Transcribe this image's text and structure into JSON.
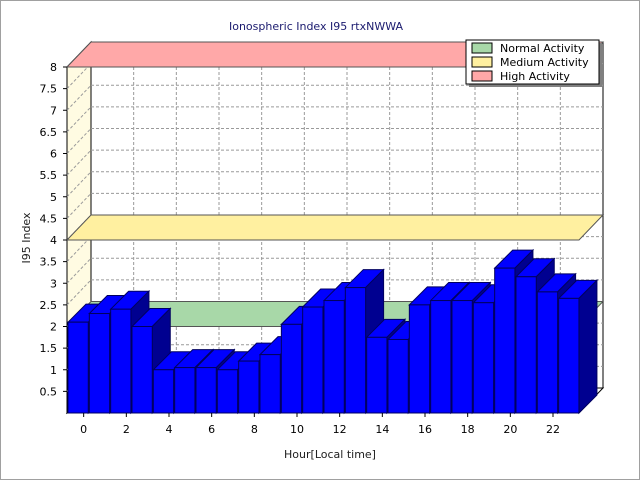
{
  "chart_data": {
    "type": "bar",
    "title": "Ionospheric Index I95 rtxNWWA",
    "xlabel": "Hour[Local time]",
    "ylabel": "I95 Index",
    "ylim": [
      0,
      8
    ],
    "ytick_step": 0.5,
    "x": [
      0,
      1,
      2,
      3,
      4,
      5,
      6,
      7,
      8,
      9,
      10,
      11,
      12,
      13,
      14,
      15,
      16,
      17,
      18,
      19,
      20,
      21,
      22,
      23
    ],
    "xtick_labels": [
      "0",
      "2",
      "4",
      "6",
      "8",
      "10",
      "12",
      "14",
      "16",
      "18",
      "20",
      "22"
    ],
    "values": [
      2.1,
      2.3,
      2.4,
      2.0,
      1.0,
      1.05,
      1.05,
      1.0,
      1.2,
      1.35,
      2.05,
      2.45,
      2.6,
      2.9,
      1.75,
      1.7,
      2.5,
      2.6,
      2.6,
      2.55,
      3.35,
      3.15,
      2.8,
      2.65
    ],
    "bar_color": "#0000ff",
    "grid": true,
    "legend_position": "top-right",
    "bands": [
      {
        "name": "Normal Activity",
        "color": "#a8d8a8",
        "y": 2.0
      },
      {
        "name": "Medium Activity",
        "color": "#fff0a0",
        "y": 4.0
      },
      {
        "name": "High Activity",
        "color": "#ffa8a8",
        "y": 8.0
      }
    ]
  }
}
